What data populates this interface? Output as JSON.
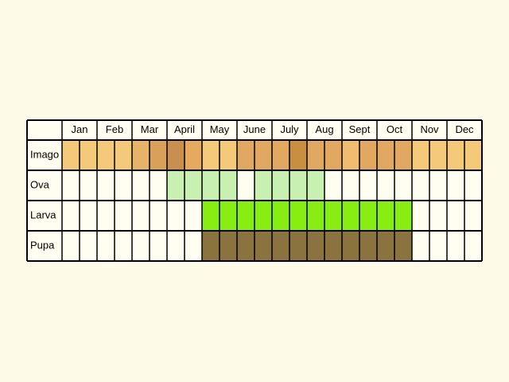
{
  "table": {
    "header": [
      "Jan",
      "Feb",
      "Mar",
      "April",
      "May",
      "June",
      "July",
      "Aug",
      "Sept",
      "Oct",
      "Nov",
      "Dec"
    ],
    "rows": [
      {
        "label": "Imago",
        "cells": [
          "#f5c97a",
          "#f5c97a",
          "#f5c97a",
          "#f5c97a",
          "#e6b468",
          "#d9a05a",
          "#c98f4f",
          "#e5aa5e",
          "#f5c97a",
          "#f5c97a",
          "#e0a860",
          "#e0a860",
          "#e0a860",
          "#c98f40",
          "#e0a860",
          "#e0a860",
          "#f0bd70",
          "#e0a860",
          "#e0a860",
          "#e0a860",
          "#f5c97a",
          "#f5c97a",
          "#f5c97a",
          "#f5c97a"
        ]
      },
      {
        "label": "Ova",
        "cells": [
          "#fffef0",
          "#fffef0",
          "#fffef0",
          "#fffef0",
          "#fffef0",
          "#fffef0",
          "#c8f0b0",
          "#c8f0b0",
          "#c8f0b0",
          "#c8f0b0",
          "#fffef0",
          "#c8f0b0",
          "#c8f0b0",
          "#c8f0b0",
          "#c8f0b0",
          "#fffef0",
          "#fffef0",
          "#fffef0",
          "#fffef0",
          "#fffef0",
          "#fffef0",
          "#fffef0",
          "#fffef0",
          "#fffef0"
        ]
      },
      {
        "label": "Larva",
        "cells": [
          "#fffef0",
          "#fffef0",
          "#fffef0",
          "#fffef0",
          "#fffef0",
          "#fffef0",
          "#fffef0",
          "#fffef0",
          "#88ee11",
          "#88ee11",
          "#88ee11",
          "#88ee11",
          "#88ee11",
          "#88ee11",
          "#88ee11",
          "#88ee11",
          "#88ee11",
          "#88ee11",
          "#88ee11",
          "#88ee11",
          "#fffef0",
          "#fffef0",
          "#fffef0",
          "#fffef0"
        ]
      },
      {
        "label": "Pupa",
        "cells": [
          "#fffef0",
          "#fffef0",
          "#fffef0",
          "#fffef0",
          "#fffef0",
          "#fffef0",
          "#fffef0",
          "#fffef0",
          "#8b7340",
          "#8b7340",
          "#8b7340",
          "#8b7340",
          "#8b7340",
          "#8b7340",
          "#8b7340",
          "#8b7340",
          "#8b7340",
          "#8b7340",
          "#8b7340",
          "#8b7340",
          "#fffef0",
          "#fffef0",
          "#fffef0",
          "#fffef0"
        ]
      }
    ]
  }
}
